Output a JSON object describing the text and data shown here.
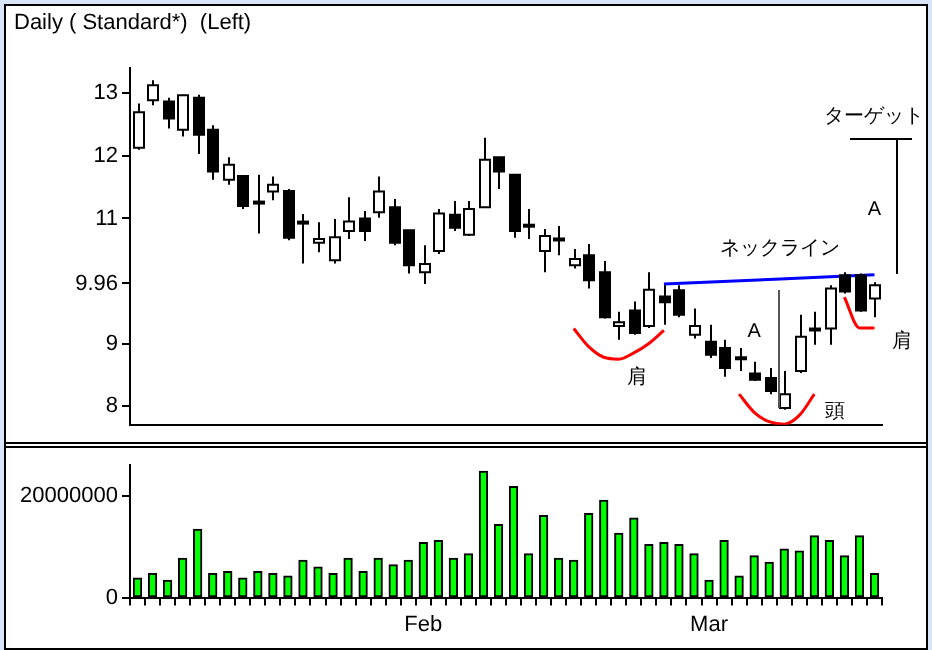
{
  "chart_data": [
    {
      "type": "candlestick",
      "title": "Daily ( Standard*)  (Left)",
      "categories": [
        null,
        null,
        null,
        null,
        null,
        null,
        null,
        null,
        null,
        null,
        null,
        null,
        null,
        null,
        null,
        null,
        null,
        null,
        null,
        null,
        null,
        null,
        null,
        null,
        null,
        null,
        null,
        null,
        null,
        null,
        null,
        null,
        null,
        null,
        null,
        null,
        null,
        null,
        null,
        null,
        null,
        null,
        null,
        null,
        null,
        null,
        null,
        null,
        null,
        null
      ],
      "ohlc": [
        [
          12.13,
          12.84,
          12.1,
          12.7
        ],
        [
          12.89,
          13.21,
          12.81,
          13.13
        ],
        [
          12.87,
          12.93,
          12.44,
          12.6
        ],
        [
          12.42,
          12.98,
          12.31,
          12.97
        ],
        [
          12.93,
          12.98,
          12.03,
          12.34
        ],
        [
          12.42,
          12.49,
          11.62,
          11.75
        ],
        [
          11.62,
          11.98,
          11.54,
          11.86
        ],
        [
          11.68,
          11.68,
          11.15,
          11.2
        ],
        [
          11.27,
          11.7,
          10.76,
          11.25
        ],
        [
          11.43,
          11.67,
          11.29,
          11.54
        ],
        [
          11.44,
          11.47,
          10.65,
          10.69
        ],
        [
          10.95,
          11.07,
          10.28,
          10.93
        ],
        [
          10.61,
          10.94,
          10.46,
          10.67
        ],
        [
          10.33,
          10.99,
          10.28,
          10.7
        ],
        [
          10.8,
          11.34,
          10.67,
          10.95
        ],
        [
          11.0,
          11.12,
          10.64,
          10.8
        ],
        [
          11.1,
          11.67,
          11.01,
          11.43
        ],
        [
          11.18,
          11.31,
          10.57,
          10.61
        ],
        [
          10.81,
          10.81,
          10.12,
          10.25
        ],
        [
          10.14,
          10.57,
          9.95,
          10.27
        ],
        [
          10.48,
          11.15,
          10.43,
          11.08
        ],
        [
          11.06,
          11.28,
          10.8,
          10.85
        ],
        [
          10.74,
          11.28,
          10.72,
          11.15
        ],
        [
          11.18,
          12.29,
          11.18,
          11.94
        ],
        [
          11.98,
          11.98,
          11.47,
          11.75
        ],
        [
          11.7,
          11.7,
          10.69,
          10.8
        ],
        [
          10.9,
          11.15,
          10.67,
          10.88
        ],
        [
          10.48,
          10.83,
          10.14,
          10.72
        ],
        [
          10.68,
          10.88,
          10.41,
          10.67
        ],
        [
          10.25,
          10.51,
          10.2,
          10.35
        ],
        [
          10.41,
          10.59,
          9.88,
          10.01
        ],
        [
          10.14,
          10.32,
          9.4,
          9.42
        ],
        [
          9.28,
          9.51,
          9.06,
          9.34
        ],
        [
          9.53,
          9.67,
          9.14,
          9.17
        ],
        [
          9.28,
          10.14,
          9.25,
          9.86
        ],
        [
          9.75,
          9.93,
          9.3,
          9.66
        ],
        [
          9.85,
          9.93,
          9.42,
          9.46
        ],
        [
          9.14,
          9.56,
          9.08,
          9.28
        ],
        [
          9.03,
          9.3,
          8.77,
          8.82
        ],
        [
          8.93,
          9.06,
          8.47,
          8.61
        ],
        [
          8.78,
          8.93,
          8.56,
          8.76
        ],
        [
          8.52,
          8.71,
          8.4,
          8.42
        ],
        [
          8.45,
          8.61,
          8.19,
          8.24
        ],
        [
          7.97,
          8.56,
          7.94,
          8.19
        ],
        [
          8.56,
          9.46,
          8.53,
          9.11
        ],
        [
          9.24,
          9.51,
          8.98,
          9.22
        ],
        [
          9.24,
          9.93,
          8.98,
          9.88
        ],
        [
          10.09,
          10.14,
          9.8,
          9.83
        ],
        [
          10.09,
          10.12,
          9.51,
          9.53
        ],
        [
          9.72,
          9.98,
          9.42,
          9.93
        ]
      ],
      "series": [
        {
          "type": "line",
          "color": "#0000ff",
          "values": [
            null,
            null,
            null,
            null,
            null,
            null,
            null,
            null,
            null,
            null,
            null,
            null,
            null,
            null,
            null,
            null,
            null,
            null,
            null,
            null,
            null,
            null,
            null,
            null,
            null,
            null,
            null,
            null,
            null,
            null,
            null,
            null,
            null,
            null,
            null,
            9.95,
            null,
            null,
            null,
            null,
            null,
            null,
            null,
            null,
            null,
            null,
            null,
            null,
            null,
            10.1
          ]
        },
        {
          "type": "line",
          "color": "#ff0000",
          "values": [
            null,
            null,
            null,
            null,
            null,
            null,
            null,
            null,
            null,
            null,
            null,
            null,
            null,
            null,
            null,
            null,
            null,
            null,
            null,
            null,
            null,
            null,
            null,
            null,
            null,
            null,
            null,
            null,
            null,
            9.24,
            8.95,
            8.78,
            8.75,
            8.85,
            9.0,
            9.21,
            null,
            null,
            null,
            null,
            null,
            null,
            null,
            null,
            null,
            null,
            null,
            null,
            null,
            null
          ]
        },
        {
          "type": "line",
          "color": "#ff0000",
          "values": [
            null,
            null,
            null,
            null,
            null,
            null,
            null,
            null,
            null,
            null,
            null,
            null,
            null,
            null,
            null,
            null,
            null,
            null,
            null,
            null,
            null,
            null,
            null,
            null,
            null,
            null,
            null,
            null,
            null,
            null,
            null,
            null,
            null,
            null,
            null,
            null,
            null,
            null,
            null,
            null,
            8.19,
            7.9,
            7.75,
            7.71,
            7.85,
            8.19,
            null,
            null,
            null,
            null
          ]
        },
        {
          "type": "line",
          "color": "#ff0000",
          "values": [
            null,
            null,
            null,
            null,
            null,
            null,
            null,
            null,
            null,
            null,
            null,
            null,
            null,
            null,
            null,
            null,
            null,
            null,
            null,
            null,
            null,
            null,
            null,
            null,
            null,
            null,
            null,
            null,
            null,
            null,
            null,
            null,
            null,
            null,
            null,
            null,
            null,
            null,
            null,
            null,
            null,
            null,
            null,
            null,
            null,
            null,
            null,
            9.74,
            9.25,
            9.25
          ]
        }
      ],
      "annotations": [
        "ネックライン",
        "A",
        "A",
        "ターゲット",
        "肩",
        "頭",
        "肩"
      ],
      "ylim": [
        7.7,
        13.4
      ],
      "yticks": [
        8,
        9,
        9.96,
        11,
        12,
        13
      ],
      "tick_labels": "y",
      "grid": false,
      "legend": false
    },
    {
      "type": "bar",
      "color": "#00ff00",
      "categories": [
        null,
        null,
        null,
        null,
        null,
        null,
        null,
        null,
        null,
        null,
        null,
        null,
        null,
        null,
        null,
        null,
        null,
        null,
        null,
        "Feb",
        null,
        null,
        null,
        null,
        null,
        null,
        null,
        null,
        null,
        null,
        null,
        null,
        null,
        null,
        null,
        null,
        null,
        null,
        "Mar",
        null,
        null,
        null,
        null,
        null,
        null,
        null,
        null,
        null,
        null,
        null
      ],
      "values": [
        3800000,
        4700000,
        3400000,
        7700000,
        13400000,
        4700000,
        5100000,
        3800000,
        5100000,
        4700000,
        4200000,
        7300000,
        6000000,
        4700000,
        7700000,
        5100000,
        7700000,
        6400000,
        7300000,
        10800000,
        11200000,
        7700000,
        8600000,
        24800000,
        14300000,
        21800000,
        8600000,
        16100000,
        7700000,
        7300000,
        16500000,
        19100000,
        12600000,
        15600000,
        10400000,
        10800000,
        10400000,
        8600000,
        3400000,
        11200000,
        4200000,
        8200000,
        6900000,
        9500000,
        9100000,
        12100000,
        11200000,
        8200000,
        12100000,
        4700000
      ],
      "ylim": [
        0,
        26000000
      ],
      "yticks": [
        0,
        20000000
      ],
      "grid": false,
      "legend": false
    }
  ]
}
